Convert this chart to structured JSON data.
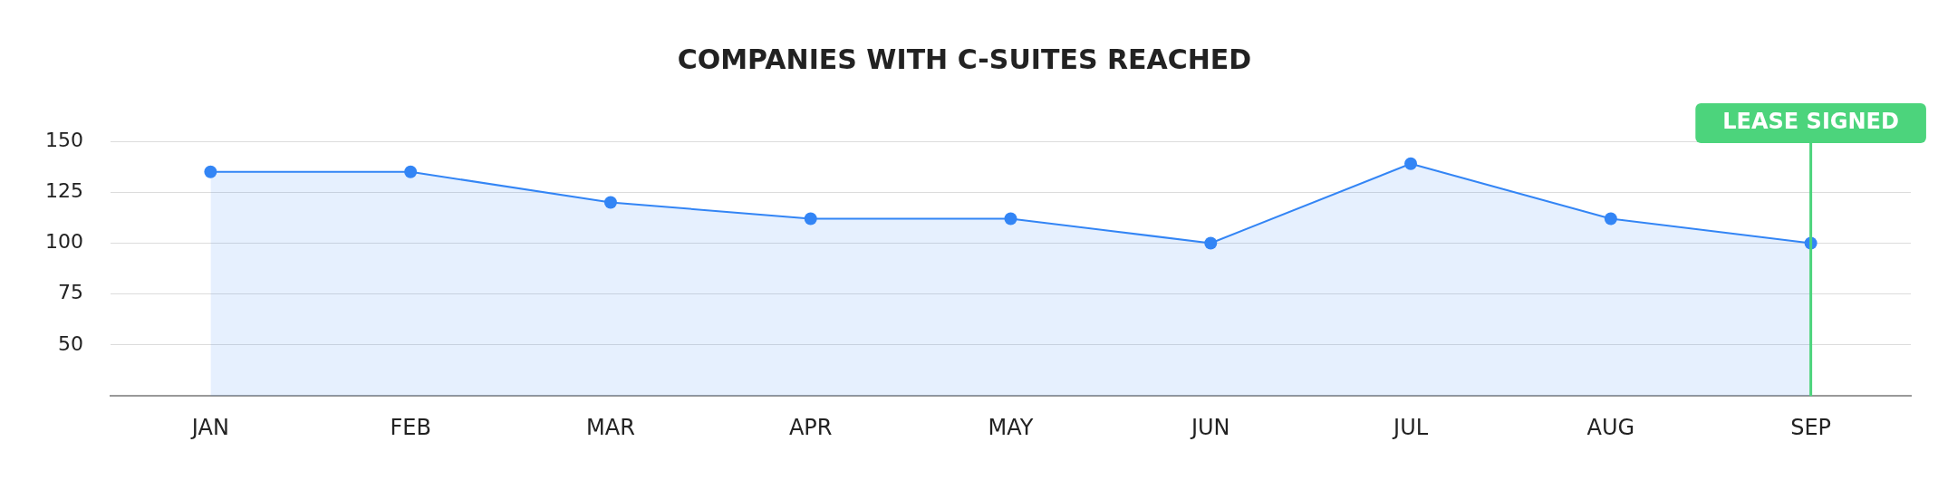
{
  "chart_data": {
    "type": "area",
    "title": "COMPANIES WITH C-SUITES REACHED",
    "categories": [
      "JAN",
      "FEB",
      "MAR",
      "APR",
      "MAY",
      "JUN",
      "JUL",
      "AUG",
      "SEP"
    ],
    "series": [
      {
        "color": "#3385f5",
        "values": [
          135,
          135,
          120,
          112,
          112,
          100,
          139,
          112,
          100
        ]
      }
    ],
    "ylim": [
      25,
      150
    ],
    "yticks": [
      50,
      75,
      100,
      125,
      150
    ],
    "grid": "y",
    "marker": "circle",
    "legend": false,
    "ref_lines": [
      {
        "axis": "x",
        "value": "SEP",
        "label": "LEASE SIGNED",
        "color": "#4cd47c"
      }
    ]
  }
}
